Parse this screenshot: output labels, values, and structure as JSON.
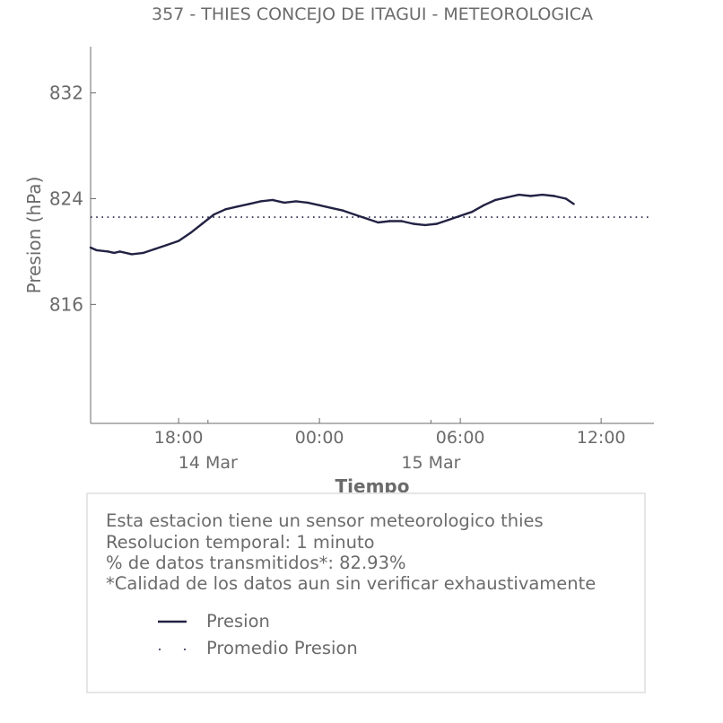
{
  "chart_data": {
    "type": "line",
    "title": "357 - THIES CONCEJO DE ITAGUI - METEOROLOGICA",
    "xlabel": "Tiempo",
    "ylabel": "Presion (hPa)",
    "ylim": [
      807,
      835.5
    ],
    "y_ticks": [
      832,
      824,
      816
    ],
    "xlim": [
      "2024-03-14 14:15",
      "2024-03-15 14:15"
    ],
    "x_ticks": [
      {
        "time": "2024-03-14 18:00",
        "label": "18:00"
      },
      {
        "time": "2024-03-15 00:00",
        "label": "00:00"
      },
      {
        "time": "2024-03-15 06:00",
        "label": "06:00"
      },
      {
        "time": "2024-03-15 12:00",
        "label": "12:00"
      }
    ],
    "date_ticks": [
      {
        "time": "2024-03-14 19:15",
        "label": "14 Mar"
      },
      {
        "time": "2024-03-15 04:45",
        "label": "15 Mar"
      }
    ],
    "grid": false,
    "series": [
      {
        "name": "Presion",
        "color": "#222244",
        "style": "solid",
        "points": [
          [
            "2024-03-14 14:15",
            820.3
          ],
          [
            "2024-03-14 14:30",
            820.1
          ],
          [
            "2024-03-14 15:00",
            820.0
          ],
          [
            "2024-03-14 15:15",
            819.9
          ],
          [
            "2024-03-14 15:30",
            820.0
          ],
          [
            "2024-03-14 16:00",
            819.8
          ],
          [
            "2024-03-14 16:30",
            819.9
          ],
          [
            "2024-03-14 17:00",
            820.2
          ],
          [
            "2024-03-14 17:30",
            820.5
          ],
          [
            "2024-03-14 18:00",
            820.8
          ],
          [
            "2024-03-14 18:30",
            821.4
          ],
          [
            "2024-03-14 19:00",
            822.1
          ],
          [
            "2024-03-14 19:30",
            822.8
          ],
          [
            "2024-03-14 20:00",
            823.2
          ],
          [
            "2024-03-14 20:30",
            823.4
          ],
          [
            "2024-03-14 21:00",
            823.6
          ],
          [
            "2024-03-14 21:30",
            823.8
          ],
          [
            "2024-03-14 22:00",
            823.9
          ],
          [
            "2024-03-14 22:30",
            823.7
          ],
          [
            "2024-03-14 23:00",
            823.8
          ],
          [
            "2024-03-14 23:30",
            823.7
          ],
          [
            "2024-03-15 00:00",
            823.5
          ],
          [
            "2024-03-15 00:30",
            823.3
          ],
          [
            "2024-03-15 01:00",
            823.1
          ],
          [
            "2024-03-15 01:30",
            822.8
          ],
          [
            "2024-03-15 02:00",
            822.5
          ],
          [
            "2024-03-15 02:30",
            822.2
          ],
          [
            "2024-03-15 03:00",
            822.3
          ],
          [
            "2024-03-15 03:30",
            822.3
          ],
          [
            "2024-03-15 04:00",
            822.1
          ],
          [
            "2024-03-15 04:30",
            822.0
          ],
          [
            "2024-03-15 05:00",
            822.1
          ],
          [
            "2024-03-15 05:30",
            822.4
          ],
          [
            "2024-03-15 06:00",
            822.7
          ],
          [
            "2024-03-15 06:30",
            823.0
          ],
          [
            "2024-03-15 07:00",
            823.5
          ],
          [
            "2024-03-15 07:30",
            823.9
          ],
          [
            "2024-03-15 08:00",
            824.1
          ],
          [
            "2024-03-15 08:30",
            824.3
          ],
          [
            "2024-03-15 09:00",
            824.2
          ],
          [
            "2024-03-15 09:30",
            824.3
          ],
          [
            "2024-03-15 10:00",
            824.2
          ],
          [
            "2024-03-15 10:30",
            824.0
          ],
          [
            "2024-03-15 10:50",
            823.6
          ]
        ]
      },
      {
        "name": "Promedio Presion",
        "color": "#222244",
        "style": "dotted",
        "constant": 822.6
      }
    ]
  },
  "info": {
    "line1": "Esta estacion tiene un sensor meteorologico thies",
    "line2": "Resolucion temporal: 1 minuto",
    "line3": "% de datos transmitidos*: 82.93%",
    "line4": "*Calidad de los datos aun sin verificar exhaustivamente"
  },
  "legend": {
    "presion": "Presion",
    "promedio": "Promedio Presion"
  }
}
